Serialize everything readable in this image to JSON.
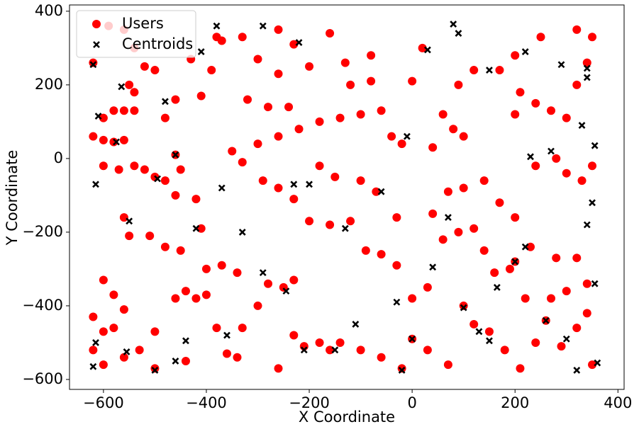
{
  "chart_data": {
    "type": "scatter",
    "x_label": "X Coordinate",
    "y_label": "Y Coordinate",
    "xlim": [
      -666,
      412
    ],
    "ylim": [
      -627,
      417
    ],
    "xticks": [
      {
        "value": -600,
        "label": "−600"
      },
      {
        "value": -400,
        "label": "−400"
      },
      {
        "value": -200,
        "label": "−200"
      },
      0,
      200,
      400
    ],
    "yticks": [
      {
        "value": -600,
        "label": "−600"
      },
      {
        "value": -400,
        "label": "−400"
      },
      {
        "value": -200,
        "label": "−200"
      },
      0,
      200,
      400
    ],
    "legend": "upper left",
    "series": [
      {
        "name": "Users",
        "color": "#ff0000",
        "marker": "circle",
        "x": [
          -620,
          -590,
          -560,
          -540,
          -520,
          -500,
          -550,
          -540,
          -600,
          -580,
          -560,
          -540,
          -600,
          -580,
          -560,
          -620,
          -600,
          -570,
          -540,
          -520,
          -500,
          -480,
          -460,
          -450,
          -460,
          -420,
          -560,
          -550,
          -510,
          -480,
          -450,
          -410,
          -600,
          -580,
          -560,
          -620,
          -600,
          -580,
          -620,
          -600,
          -560,
          -530,
          -500,
          -500,
          -460,
          -440,
          -420,
          -400,
          -380,
          -360,
          -340,
          -440,
          -400,
          -370,
          -340,
          -330,
          -300,
          -280,
          -250,
          -230,
          -260,
          -230,
          -210,
          -180,
          -160,
          -140,
          -100,
          -60,
          -20,
          0,
          30,
          70,
          100,
          120,
          150,
          180,
          210,
          240,
          260,
          290,
          320,
          340,
          350,
          220,
          270,
          300,
          340,
          200,
          230,
          280,
          320,
          60,
          90,
          120,
          140,
          160,
          190,
          30,
          0,
          -30,
          -60,
          -90,
          -120,
          -160,
          -200,
          -230,
          -260,
          -290,
          -330,
          -350,
          -300,
          -260,
          -220,
          -180,
          -140,
          -100,
          -60,
          -40,
          -20,
          -70,
          -100,
          -150,
          -180,
          -30,
          40,
          70,
          100,
          140,
          170,
          200,
          240,
          280,
          300,
          330,
          350,
          210,
          240,
          200,
          270,
          300,
          320,
          340,
          350,
          320,
          250,
          200,
          170,
          120,
          90,
          60,
          80,
          100,
          40,
          0,
          20,
          -80,
          -130,
          -160,
          -200,
          -230,
          -260,
          -300,
          -330,
          -370,
          -390,
          -410,
          -460,
          -430,
          -480,
          -320,
          -280,
          -240,
          -380,
          -260,
          -80,
          -120
        ],
        "y": [
          260,
          360,
          350,
          300,
          250,
          240,
          200,
          180,
          110,
          130,
          130,
          130,
          50,
          45,
          50,
          60,
          -20,
          -30,
          -20,
          -30,
          -50,
          -60,
          10,
          -30,
          -100,
          -110,
          -160,
          -210,
          -210,
          -240,
          -250,
          -190,
          -330,
          -370,
          -410,
          -430,
          -470,
          -460,
          -520,
          -560,
          -540,
          -520,
          -470,
          -570,
          -380,
          -360,
          -380,
          -370,
          -460,
          -530,
          -540,
          -550,
          -300,
          -290,
          -310,
          -460,
          -400,
          -340,
          -350,
          -330,
          -570,
          -480,
          -510,
          -500,
          -520,
          -500,
          -520,
          -540,
          -570,
          -490,
          -520,
          -560,
          -400,
          -450,
          -470,
          -520,
          -570,
          -500,
          -440,
          -510,
          -460,
          -420,
          -560,
          -380,
          -380,
          -360,
          -340,
          -280,
          -240,
          -270,
          -270,
          -220,
          -200,
          -190,
          -250,
          -310,
          -300,
          -350,
          -380,
          -290,
          -260,
          -250,
          -170,
          -180,
          -170,
          -110,
          -80,
          -60,
          -10,
          20,
          40,
          60,
          80,
          100,
          110,
          120,
          130,
          60,
          40,
          -90,
          -60,
          -50,
          -20,
          -160,
          -150,
          -90,
          -80,
          -60,
          -120,
          -160,
          -20,
          0,
          -40,
          -60,
          -20,
          180,
          150,
          120,
          130,
          110,
          200,
          260,
          330,
          350,
          330,
          280,
          240,
          240,
          200,
          120,
          80,
          60,
          30,
          210,
          300,
          280,
          260,
          340,
          250,
          310,
          230,
          270,
          330,
          320,
          240,
          170,
          160,
          270,
          110,
          160,
          140,
          140,
          330,
          350,
          210,
          200
        ]
      },
      {
        "name": "Centroids",
        "color": "#000000",
        "marker": "x",
        "x": [
          -620,
          -565,
          -610,
          -575,
          -615,
          -550,
          -495,
          -460,
          -420,
          -370,
          -330,
          -290,
          -245,
          -230,
          -200,
          -210,
          -150,
          -110,
          -30,
          -20,
          0,
          40,
          70,
          100,
          130,
          165,
          200,
          220,
          260,
          300,
          340,
          350,
          355,
          360,
          320,
          150,
          270,
          230,
          330,
          355,
          340,
          340,
          290,
          220,
          150,
          80,
          90,
          30,
          -10,
          -60,
          -130,
          -220,
          -290,
          -410,
          -380,
          -480,
          -360,
          -440,
          -555,
          -615,
          -620,
          -500,
          -460
        ],
        "y": [
          255,
          195,
          115,
          45,
          -70,
          -170,
          -55,
          10,
          -190,
          -80,
          -200,
          -310,
          -360,
          -70,
          -70,
          -520,
          -520,
          -450,
          -390,
          -575,
          -490,
          -295,
          -160,
          -405,
          -470,
          -350,
          -280,
          -240,
          -440,
          -490,
          -180,
          -120,
          -340,
          -555,
          -575,
          -495,
          20,
          5,
          90,
          35,
          245,
          220,
          255,
          290,
          240,
          365,
          340,
          295,
          60,
          -90,
          -190,
          315,
          360,
          290,
          360,
          155,
          -480,
          -495,
          -525,
          -500,
          -565,
          -575,
          -550
        ]
      }
    ]
  }
}
